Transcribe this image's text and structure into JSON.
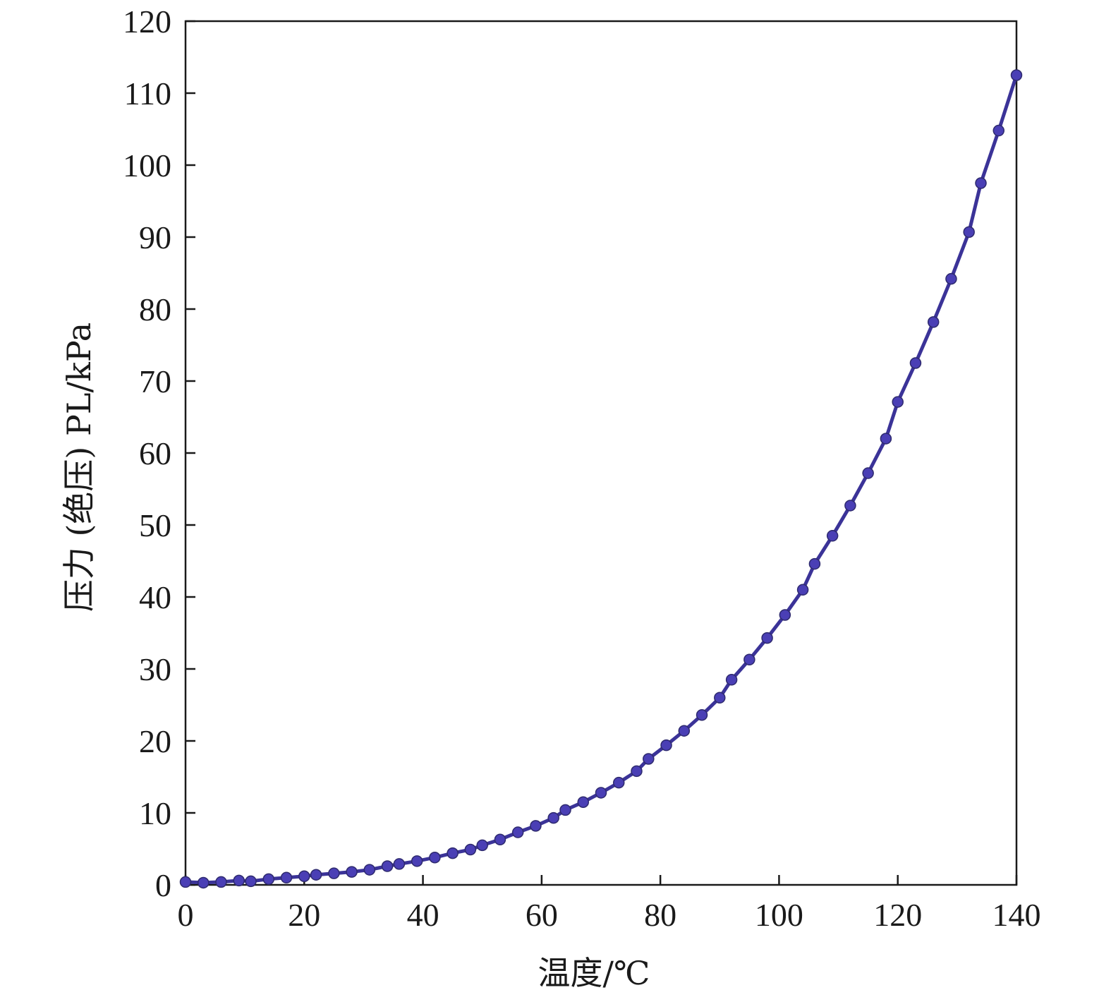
{
  "chart_data": {
    "type": "line",
    "title": "",
    "xlabel": "温度/℃",
    "ylabel": "压力 (绝压) PL/kPa",
    "xlim": [
      0,
      140
    ],
    "ylim": [
      0,
      120
    ],
    "xticks": [
      0,
      20,
      40,
      60,
      80,
      100,
      120,
      140
    ],
    "yticks": [
      0,
      10,
      20,
      30,
      40,
      50,
      60,
      70,
      80,
      90,
      100,
      110,
      120
    ],
    "grid": false,
    "legend": "none",
    "colors": {
      "line": "#3b3398",
      "marker": "#4a3fb5",
      "axis": "#1a1a1a"
    },
    "series": [
      {
        "name": "",
        "x": [
          0,
          3,
          6,
          9,
          11,
          14,
          17,
          20,
          22,
          25,
          28,
          31,
          34,
          36,
          39,
          42,
          45,
          48,
          50,
          53,
          56,
          59,
          62,
          64,
          67,
          70,
          73,
          76,
          78,
          81,
          84,
          87,
          90,
          92,
          95,
          98,
          101,
          104,
          106,
          109,
          112,
          115,
          118,
          120,
          123,
          126,
          129,
          132,
          134,
          137,
          140
        ],
        "y": [
          0.4,
          0.3,
          0.4,
          0.6,
          0.5,
          0.8,
          1.0,
          1.2,
          1.4,
          1.6,
          1.8,
          2.1,
          2.6,
          2.9,
          3.3,
          3.8,
          4.4,
          4.9,
          5.5,
          6.3,
          7.3,
          8.2,
          9.3,
          10.4,
          11.5,
          12.8,
          14.2,
          15.8,
          17.5,
          19.4,
          21.4,
          23.6,
          26.0,
          28.5,
          31.3,
          34.3,
          37.5,
          41.0,
          44.6,
          48.5,
          52.7,
          57.2,
          62.0,
          67.1,
          72.5,
          78.2,
          84.2,
          90.7,
          97.5,
          104.8,
          112.5
        ]
      }
    ]
  }
}
